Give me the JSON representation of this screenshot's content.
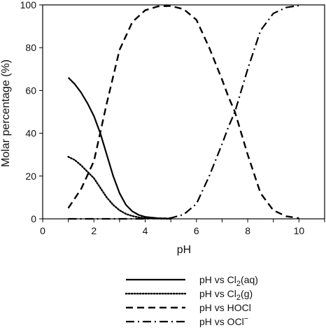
{
  "chart_data": {
    "type": "line",
    "xlabel": "pH",
    "ylabel": "Molar percentage (%)",
    "xlim": [
      0,
      11
    ],
    "ylim": [
      0,
      100
    ],
    "x_ticks": [
      0,
      2,
      4,
      6,
      8,
      10
    ],
    "y_ticks": [
      0,
      20,
      40,
      60,
      80,
      100
    ],
    "grid": false,
    "legend_position": "bottom",
    "series": [
      {
        "name": "pH vs Cl2(aq)",
        "legend_parts": [
          "pH vs Cl",
          "2",
          "(aq)"
        ],
        "style": "solid",
        "x": [
          1.0,
          1.25,
          1.5,
          1.75,
          2.0,
          2.25,
          2.5,
          2.75,
          3.0,
          3.25,
          3.5,
          3.75,
          4.0,
          4.5,
          5.0
        ],
        "y": [
          66,
          63,
          59,
          54,
          48,
          40,
          30,
          20,
          12,
          6.5,
          3.5,
          1.8,
          0.9,
          0.3,
          0.1
        ]
      },
      {
        "name": "pH vs Cl2(g)",
        "legend_parts": [
          "pH vs Cl",
          "2",
          "(g)"
        ],
        "style": "dotted",
        "x": [
          1.0,
          1.25,
          1.5,
          1.75,
          2.0,
          2.25,
          2.5,
          2.75,
          3.0,
          3.25,
          3.5,
          3.75,
          4.0,
          4.5,
          5.0
        ],
        "y": [
          29,
          27.5,
          25,
          22,
          19,
          14.5,
          10,
          6.5,
          4,
          2.3,
          1.3,
          0.7,
          0.35,
          0.1,
          0.0
        ]
      },
      {
        "name": "pH vs HOCl",
        "legend_parts": [
          "pH vs HOCl"
        ],
        "style": "dashed",
        "x": [
          1.0,
          1.5,
          2.0,
          2.5,
          3.0,
          3.5,
          4.0,
          4.5,
          5.0,
          5.5,
          6.0,
          6.5,
          7.0,
          7.25,
          7.5,
          7.75,
          8.0,
          8.5,
          9.0,
          9.5,
          10.0
        ],
        "y": [
          5,
          14,
          27,
          54,
          79,
          92,
          97.5,
          99.3,
          99.5,
          98,
          93,
          80,
          65,
          57,
          50,
          40,
          30,
          12,
          4,
          1.2,
          0.3
        ]
      },
      {
        "name": "pH vs OCl⁻",
        "legend_parts": [
          "pH vs OCl",
          "−"
        ],
        "style": "dash-dot",
        "x": [
          1.0,
          2.0,
          3.0,
          4.0,
          4.5,
          5.0,
          5.5,
          6.0,
          6.5,
          7.0,
          7.25,
          7.5,
          7.75,
          8.0,
          8.5,
          9.0,
          9.5,
          10.0
        ],
        "y": [
          0,
          0,
          0,
          0,
          0.2,
          0.4,
          2,
          7,
          20,
          35,
          43,
          50,
          60,
          70,
          88,
          96,
          98.8,
          99.7
        ]
      }
    ]
  }
}
